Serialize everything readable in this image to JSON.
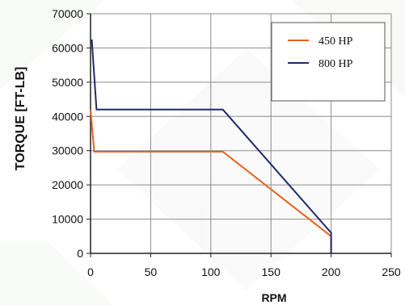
{
  "chart_data": {
    "type": "line",
    "title": "",
    "xlabel": "RPM",
    "ylabel": "TORQUE [FT-LB]",
    "xlim": [
      0,
      250
    ],
    "ylim": [
      0,
      70000
    ],
    "xticks": [
      "0",
      "50",
      "100",
      "150",
      "200",
      "250"
    ],
    "yticks": [
      "0",
      "10000",
      "20000",
      "30000",
      "40000",
      "50000",
      "60000",
      "70000"
    ],
    "grid": true,
    "legend_position": "top-right",
    "series": [
      {
        "name": "450 HP",
        "color": "#e8601c",
        "x": [
          0,
          3,
          110,
          200,
          200
        ],
        "y": [
          42000,
          29700,
          29700,
          5000,
          0
        ]
      },
      {
        "name": "800 HP",
        "color": "#1f2a6e",
        "x": [
          1,
          5,
          110,
          200,
          200
        ],
        "y": [
          62500,
          42000,
          42000,
          6000,
          0
        ]
      }
    ]
  }
}
